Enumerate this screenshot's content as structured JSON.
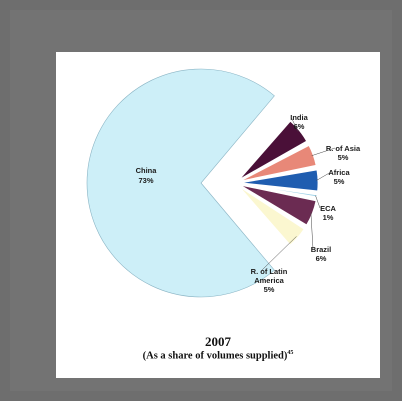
{
  "caption": {
    "year": "2007",
    "note": "(As a share of volumes supplied)",
    "note_sup": "45"
  },
  "chart_data": {
    "type": "pie",
    "title": "2007",
    "subtitle": "(As a share of volumes supplied)",
    "slices": [
      {
        "label": "China",
        "value": 73,
        "pct": "73%",
        "color": "#cdeff8"
      },
      {
        "label": "India",
        "value": 6,
        "pct": "6%",
        "color": "#4a1038"
      },
      {
        "label": "R. of Asia",
        "value": 5,
        "pct": "5%",
        "color": "#e88878"
      },
      {
        "label": "Africa",
        "value": 5,
        "pct": "5%",
        "color": "#1f5db0"
      },
      {
        "label": "ECA",
        "value": 1,
        "pct": "1%",
        "color": "#9ad0e6"
      },
      {
        "label": "Brazil",
        "value": 6,
        "pct": "6%",
        "color": "#6b2b52"
      },
      {
        "label": "R. of Latin America",
        "value": 5,
        "pct": "5%",
        "color": "#fbf7d0"
      }
    ],
    "legend": "none"
  }
}
